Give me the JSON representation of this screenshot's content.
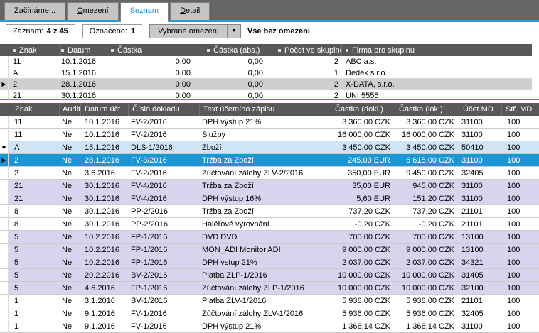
{
  "tabs": [
    {
      "name": "zaciname",
      "label": "Začínáme...",
      "accel": -1,
      "active": false
    },
    {
      "name": "omezeni",
      "label": "Omezení",
      "accel": 0,
      "active": false
    },
    {
      "name": "seznam",
      "label": "Seznam",
      "accel": -1,
      "active": true
    },
    {
      "name": "detail",
      "label": "Detail",
      "accel": 0,
      "active": false
    }
  ],
  "toolbar": {
    "record_label": "Záznam:",
    "record_value": "4 z 45",
    "marked_label": "Označeno:",
    "marked_value": "1",
    "filter_button": "Vybrané omezení",
    "dropdown_icon": "▼",
    "filter_status": "Vše bez omezení"
  },
  "group_table": {
    "headers": [
      "Znak",
      "Datum",
      "Částka",
      "Částka (abs.)",
      "Počet ve skupině",
      "Firma pro skupinu"
    ],
    "rows": [
      {
        "marker": "",
        "znak": "11",
        "datum": "10.1.2016",
        "castka": "0,00",
        "castka_abs": "0,00",
        "pocet": "2",
        "firma": "ABC a.s.",
        "selected": false,
        "clipped": false
      },
      {
        "marker": "",
        "znak": "A",
        "datum": "15.1.2016",
        "castka": "0,00",
        "castka_abs": "0,00",
        "pocet": "1",
        "firma": "Dedek s.r.o.",
        "selected": false,
        "clipped": false
      },
      {
        "marker": "▶",
        "znak": "2",
        "datum": "28.1.2016",
        "castka": "0,00",
        "castka_abs": "0,00",
        "pocet": "2",
        "firma": "X-DATA, s.r.o.",
        "selected": true,
        "clipped": false
      },
      {
        "marker": "",
        "znak": "21",
        "datum": "30.1.2016",
        "castka": "0,00",
        "castka_abs": "0,00",
        "pocet": "2",
        "firma": "UNI 5555",
        "selected": false,
        "clipped": true
      }
    ]
  },
  "detail_table": {
    "headers": [
      "Znak",
      "Audit",
      "Datum účt.",
      "Číslo dokladu",
      "Text účetního zápisu",
      "Částka (dokl.)",
      "Částka (lok.)",
      "Účet MD",
      "Stř. MD"
    ],
    "rows": [
      {
        "marker": "",
        "variant": "white",
        "znak": "11",
        "audit": "Ne",
        "datum": "10.1.2016",
        "cislo": "FV-2/2016",
        "text": "DPH výstup 21%",
        "castka_dokl": "3 360,00 CZK",
        "castka_lok": "3 360,00 CZK",
        "ucet_md": "31100",
        "str_md": "100"
      },
      {
        "marker": "",
        "variant": "white",
        "znak": "11",
        "audit": "Ne",
        "datum": "10.1.2016",
        "cislo": "FV-2/2016",
        "text": "Služby",
        "castka_dokl": "16 000,00 CZK",
        "castka_lok": "16 000,00 CZK",
        "ucet_md": "31100",
        "str_md": "100"
      },
      {
        "marker": "◆",
        "variant": "lightblue",
        "znak": "A",
        "audit": "Ne",
        "datum": "15.1.2016",
        "cislo": "DLS-1/2016",
        "text": "Zboží",
        "castka_dokl": "3 450,00 CZK",
        "castka_lok": "3 450,00 CZK",
        "ucet_md": "50410",
        "str_md": "100"
      },
      {
        "marker": "▶",
        "variant": "selected",
        "znak": "2",
        "audit": "Ne",
        "datum": "28.1.2016",
        "cislo": "FV-3/2016",
        "text": "Tržba za Zboží",
        "castka_dokl": "245,00 EUR",
        "castka_lok": "6 615,00 CZK",
        "ucet_md": "31100",
        "str_md": "100"
      },
      {
        "marker": "",
        "variant": "white",
        "znak": "2",
        "audit": "Ne",
        "datum": "3.6.2016",
        "cislo": "FV-2/2016",
        "text": "Zúčtování zálohy ZLV-2/2016",
        "castka_dokl": "350,00 EUR",
        "castka_lok": "9 450,00 CZK",
        "ucet_md": "32405",
        "str_md": "100"
      },
      {
        "marker": "",
        "variant": "purple",
        "znak": "21",
        "audit": "Ne",
        "datum": "30.1.2016",
        "cislo": "FV-4/2016",
        "text": "Tržba za Zboží",
        "castka_dokl": "35,00 EUR",
        "castka_lok": "945,00 CZK",
        "ucet_md": "31100",
        "str_md": "100"
      },
      {
        "marker": "",
        "variant": "purple",
        "znak": "21",
        "audit": "Ne",
        "datum": "30.1.2016",
        "cislo": "FV-4/2016",
        "text": "DPH výstup 16%",
        "castka_dokl": "5,60 EUR",
        "castka_lok": "151,20 CZK",
        "ucet_md": "31100",
        "str_md": "100"
      },
      {
        "marker": "",
        "variant": "white",
        "znak": "8",
        "audit": "Ne",
        "datum": "30.1.2016",
        "cislo": "PP-2/2016",
        "text": "Tržba za Zboží",
        "castka_dokl": "737,20 CZK",
        "castka_lok": "737,20 CZK",
        "ucet_md": "21101",
        "str_md": "100"
      },
      {
        "marker": "",
        "variant": "white",
        "znak": "8",
        "audit": "Ne",
        "datum": "30.1.2016",
        "cislo": "PP-2/2016",
        "text": "Haléřové vyrovnání",
        "castka_dokl": "-0,20 CZK",
        "castka_lok": "-0,20 CZK",
        "ucet_md": "21101",
        "str_md": "100"
      },
      {
        "marker": "",
        "variant": "purple",
        "znak": "5",
        "audit": "Ne",
        "datum": "10.2.2016",
        "cislo": "FP-1/2016",
        "text": "DVD DVD",
        "castka_dokl": "700,00 CZK",
        "castka_lok": "700,00 CZK",
        "ucet_md": "13100",
        "str_md": "100"
      },
      {
        "marker": "",
        "variant": "purple",
        "znak": "5",
        "audit": "Ne",
        "datum": "10.2.2016",
        "cislo": "FP-1/2016",
        "text": "MON_ADI Monitor ADI",
        "castka_dokl": "9 000,00 CZK",
        "castka_lok": "9 000,00 CZK",
        "ucet_md": "13100",
        "str_md": "100"
      },
      {
        "marker": "",
        "variant": "purple",
        "znak": "5",
        "audit": "Ne",
        "datum": "10.2.2016",
        "cislo": "FP-1/2016",
        "text": "DPH vstup 21%",
        "castka_dokl": "2 037,00 CZK",
        "castka_lok": "2 037,00 CZK",
        "ucet_md": "34321",
        "str_md": "100"
      },
      {
        "marker": "",
        "variant": "purple",
        "znak": "5",
        "audit": "Ne",
        "datum": "20.2.2016",
        "cislo": "BV-2/2016",
        "text": "Platba ZLP-1/2016",
        "castka_dokl": "10 000,00 CZK",
        "castka_lok": "10 000,00 CZK",
        "ucet_md": "31405",
        "str_md": "100"
      },
      {
        "marker": "",
        "variant": "purple",
        "znak": "5",
        "audit": "Ne",
        "datum": "4.6.2016",
        "cislo": "FP-1/2016",
        "text": "Zúčtování zálohy ZLP-1/2016",
        "castka_dokl": "10 000,00 CZK",
        "castka_lok": "10 000,00 CZK",
        "ucet_md": "32100",
        "str_md": "100"
      },
      {
        "marker": "",
        "variant": "white",
        "znak": "1",
        "audit": "Ne",
        "datum": "3.1.2016",
        "cislo": "BV-1/2016",
        "text": "Platba ZLV-1/2016",
        "castka_dokl": "5 936,00 CZK",
        "castka_lok": "5 936,00 CZK",
        "ucet_md": "21101",
        "str_md": "100"
      },
      {
        "marker": "",
        "variant": "white",
        "znak": "1",
        "audit": "Ne",
        "datum": "9.1.2016",
        "cislo": "FV-1/2016",
        "text": "Zúčtování zálohy ZLV-1/2016",
        "castka_dokl": "5 936,00 CZK",
        "castka_lok": "5 936,00 CZK",
        "ucet_md": "32405",
        "str_md": "100"
      },
      {
        "marker": "",
        "variant": "white",
        "znak": "1",
        "audit": "Ne",
        "datum": "9.1.2016",
        "cislo": "FV-1/2016",
        "text": "DPH výstup 21%",
        "castka_dokl": "1 366,14 CZK",
        "castka_lok": "1 366,14 CZK",
        "ucet_md": "31100",
        "str_md": "100"
      }
    ]
  },
  "colors": {
    "accent_blue": "#2aa0cd",
    "active_tab_text": "#0997d6",
    "header_bg": "#58585a",
    "selected_row_blue": "#1b96d4",
    "group_selected_gray": "#cfcfcf",
    "row_lightblue": "#cfe5f5",
    "row_purple": "#d9d3ed",
    "tabbar_bg": "#656565"
  }
}
